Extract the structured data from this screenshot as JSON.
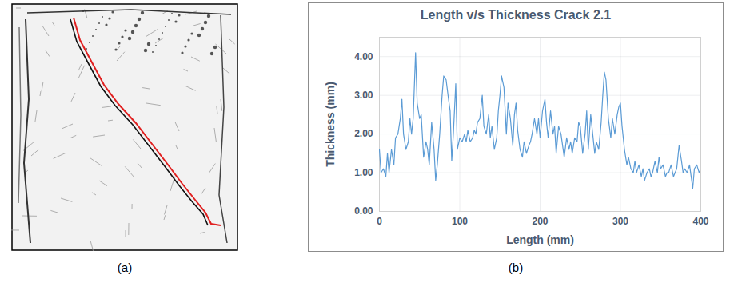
{
  "chart_data": {
    "type": "line",
    "title": "Length v/s Thickness Crack 2.1",
    "x_label": "Length (mm)",
    "y_label": "Thickness (mm)",
    "x": [
      0,
      2,
      5,
      8,
      10,
      12,
      15,
      18,
      20,
      23,
      26,
      28,
      30,
      33,
      36,
      38,
      40,
      42,
      45,
      47,
      50,
      52,
      55,
      58,
      60,
      62,
      65,
      68,
      70,
      72,
      75,
      78,
      80,
      83,
      86,
      88,
      90,
      92,
      95,
      97,
      100,
      103,
      106,
      108,
      110,
      113,
      116,
      118,
      120,
      122,
      125,
      128,
      130,
      133,
      136,
      138,
      140,
      143,
      146,
      148,
      150,
      152,
      155,
      158,
      160,
      163,
      166,
      168,
      170,
      172,
      175,
      178,
      180,
      183,
      186,
      188,
      190,
      193,
      196,
      198,
      200,
      203,
      206,
      208,
      210,
      213,
      216,
      218,
      220,
      223,
      226,
      228,
      230,
      233,
      236,
      238,
      240,
      243,
      246,
      248,
      250,
      253,
      256,
      258,
      260,
      263,
      266,
      268,
      270,
      273,
      276,
      278,
      280,
      282,
      285,
      288,
      290,
      293,
      296,
      298,
      300,
      302,
      305,
      308,
      310,
      313,
      316,
      318,
      320,
      323,
      326,
      328,
      330,
      333,
      336,
      338,
      340,
      343,
      346,
      348,
      350,
      353,
      356,
      358,
      360,
      363,
      366,
      368,
      370,
      373,
      376,
      378,
      380,
      383,
      386,
      388,
      390,
      392,
      395,
      398,
      400
    ],
    "values": [
      1.6,
      1.0,
      1.1,
      0.9,
      1.5,
      1.0,
      1.6,
      1.2,
      1.9,
      2.0,
      2.4,
      2.9,
      2.0,
      1.6,
      1.8,
      2.4,
      2.0,
      2.4,
      4.1,
      2.8,
      2.4,
      2.5,
      1.4,
      1.8,
      1.6,
      1.2,
      2.3,
      1.6,
      0.8,
      1.2,
      2.0,
      3.0,
      3.5,
      3.4,
      2.9,
      2.6,
      1.3,
      2.0,
      3.3,
      1.6,
      1.9,
      1.8,
      2.0,
      1.8,
      2.1,
      1.8,
      1.9,
      2.1,
      2.0,
      2.3,
      2.4,
      3.0,
      2.2,
      2.0,
      2.5,
      1.9,
      2.2,
      1.6,
      1.9,
      2.6,
      3.0,
      3.5,
      3.2,
      2.0,
      2.8,
      2.4,
      1.7,
      2.5,
      2.8,
      2.1,
      1.6,
      1.4,
      1.8,
      1.5,
      1.7,
      1.8,
      2.0,
      2.4,
      2.0,
      2.4,
      1.9,
      2.6,
      2.9,
      2.3,
      1.9,
      2.6,
      2.0,
      2.2,
      1.5,
      2.2,
      2.0,
      1.7,
      1.4,
      1.9,
      1.6,
      1.8,
      1.5,
      1.9,
      1.8,
      2.3,
      2.2,
      1.5,
      2.0,
      2.6,
      1.6,
      2.5,
      1.9,
      1.5,
      1.8,
      1.6,
      2.3,
      3.0,
      3.6,
      3.4,
      2.4,
      1.9,
      2.4,
      2.0,
      2.5,
      2.7,
      2.8,
      2.2,
      1.6,
      1.2,
      1.4,
      1.1,
      1.0,
      1.3,
      1.0,
      1.2,
      0.9,
      1.1,
      0.8,
      1.0,
      1.1,
      0.9,
      1.0,
      1.3,
      1.0,
      1.4,
      1.1,
      1.2,
      0.9,
      1.0,
      1.0,
      1.2,
      0.9,
      1.0,
      1.1,
      1.7,
      1.3,
      1.0,
      1.1,
      1.0,
      1.2,
      0.9,
      0.6,
      1.1,
      1.2,
      1.0,
      1.1
    ],
    "color": "#5b9bd5",
    "xlim": [
      0,
      400
    ],
    "xticks": [
      0,
      100,
      200,
      300,
      400
    ],
    "ylim": [
      0,
      4.5
    ],
    "yticks": [
      {
        "value": 0,
        "label": "0.00"
      },
      {
        "value": 1,
        "label": "1.00"
      },
      {
        "value": 2,
        "label": "2.00"
      },
      {
        "value": 3,
        "label": "3.00"
      },
      {
        "value": 4,
        "label": "4.00"
      }
    ],
    "grid": true
  },
  "panel_labels": [
    "(a)",
    "(b)"
  ]
}
